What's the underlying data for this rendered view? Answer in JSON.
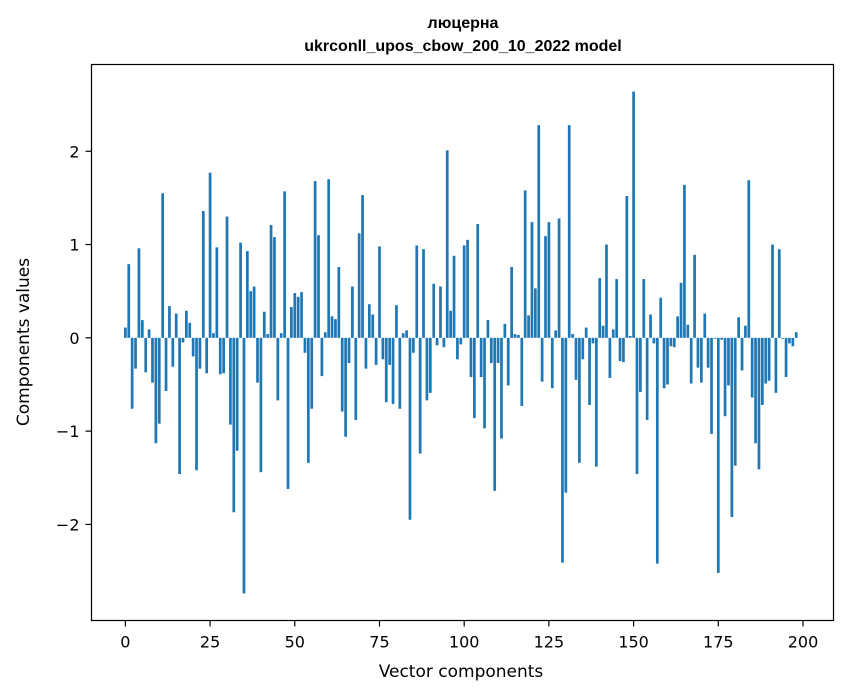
{
  "chart_data": {
    "type": "bar",
    "title": "люцерна",
    "subtitle": "ukrconll_upos_cbow_200_10_2022 model",
    "xlabel": "Vector components",
    "ylabel": "Components values",
    "xlim": [
      -10,
      209
    ],
    "ylim": [
      -3.03,
      2.93
    ],
    "xticks": [
      0,
      25,
      50,
      75,
      100,
      125,
      150,
      175,
      200
    ],
    "yticks": [
      -2,
      -1,
      0,
      1,
      2
    ],
    "ytick_labels": [
      "−2",
      "−1",
      "0",
      "1",
      "2"
    ],
    "grid": false,
    "legend": "none",
    "bar_color": "#1f77b4",
    "values": [
      0.11,
      0.79,
      -0.76,
      -0.33,
      0.96,
      0.19,
      -0.37,
      0.09,
      -0.48,
      -1.13,
      -0.92,
      1.55,
      -0.57,
      0.34,
      -0.31,
      0.26,
      -1.46,
      -0.05,
      0.29,
      0.16,
      -0.2,
      -1.42,
      -0.33,
      1.36,
      -0.38,
      1.77,
      0.05,
      0.97,
      -0.39,
      -0.38,
      1.3,
      -0.93,
      -1.87,
      -1.21,
      1.02,
      -2.74,
      0.93,
      0.5,
      0.55,
      -0.48,
      -1.44,
      0.28,
      0.04,
      1.21,
      1.08,
      -0.67,
      0.05,
      1.57,
      -1.62,
      0.33,
      0.48,
      0.44,
      0.49,
      -0.16,
      -1.34,
      -0.76,
      1.68,
      1.1,
      -0.41,
      0.06,
      1.7,
      0.23,
      0.2,
      0.76,
      -0.79,
      -1.06,
      -0.27,
      0.55,
      -0.88,
      1.12,
      1.53,
      -0.33,
      0.36,
      0.25,
      -0.29,
      0.98,
      -0.23,
      -0.69,
      -0.29,
      -0.71,
      0.35,
      -0.76,
      0.05,
      0.08,
      -1.95,
      -0.16,
      0.99,
      -1.24,
      0.95,
      -0.67,
      -0.59,
      0.58,
      -0.08,
      0.55,
      -0.1,
      2.01,
      0.29,
      0.88,
      -0.23,
      -0.07,
      0.99,
      1.05,
      -0.42,
      -0.86,
      1.22,
      -0.42,
      -0.97,
      0.19,
      -0.27,
      -1.64,
      -0.27,
      -1.08,
      0.15,
      -0.51,
      0.76,
      0.04,
      0.03,
      -0.73,
      1.58,
      0.24,
      1.24,
      0.53,
      2.28,
      -0.47,
      1.09,
      1.24,
      -0.54,
      0.08,
      1.28,
      -2.41,
      -1.66,
      2.28,
      0.04,
      -0.45,
      -1.34,
      -0.23,
      0.11,
      -0.72,
      -0.06,
      -1.38,
      0.64,
      0.13,
      1.0,
      -0.43,
      0.09,
      0.63,
      -0.25,
      -0.26,
      1.52,
      0.02,
      2.64,
      -1.46,
      -0.58,
      0.63,
      -0.88,
      0.25,
      -0.06,
      -2.42,
      0.43,
      -0.54,
      -0.5,
      -0.09,
      -0.1,
      0.23,
      0.59,
      1.64,
      0.14,
      -0.49,
      0.89,
      -0.32,
      -0.48,
      0.26,
      -0.32,
      -1.03,
      -0.01,
      -2.52,
      -0.02,
      -0.84,
      -0.51,
      -1.92,
      -1.37,
      0.22,
      -0.35,
      0.13,
      1.69,
      -0.64,
      -1.13,
      -1.41,
      -0.72,
      -0.49,
      -0.46,
      1.0,
      -0.59,
      0.95,
      -0.01,
      -0.42,
      -0.06,
      -0.09,
      0.06
    ]
  }
}
